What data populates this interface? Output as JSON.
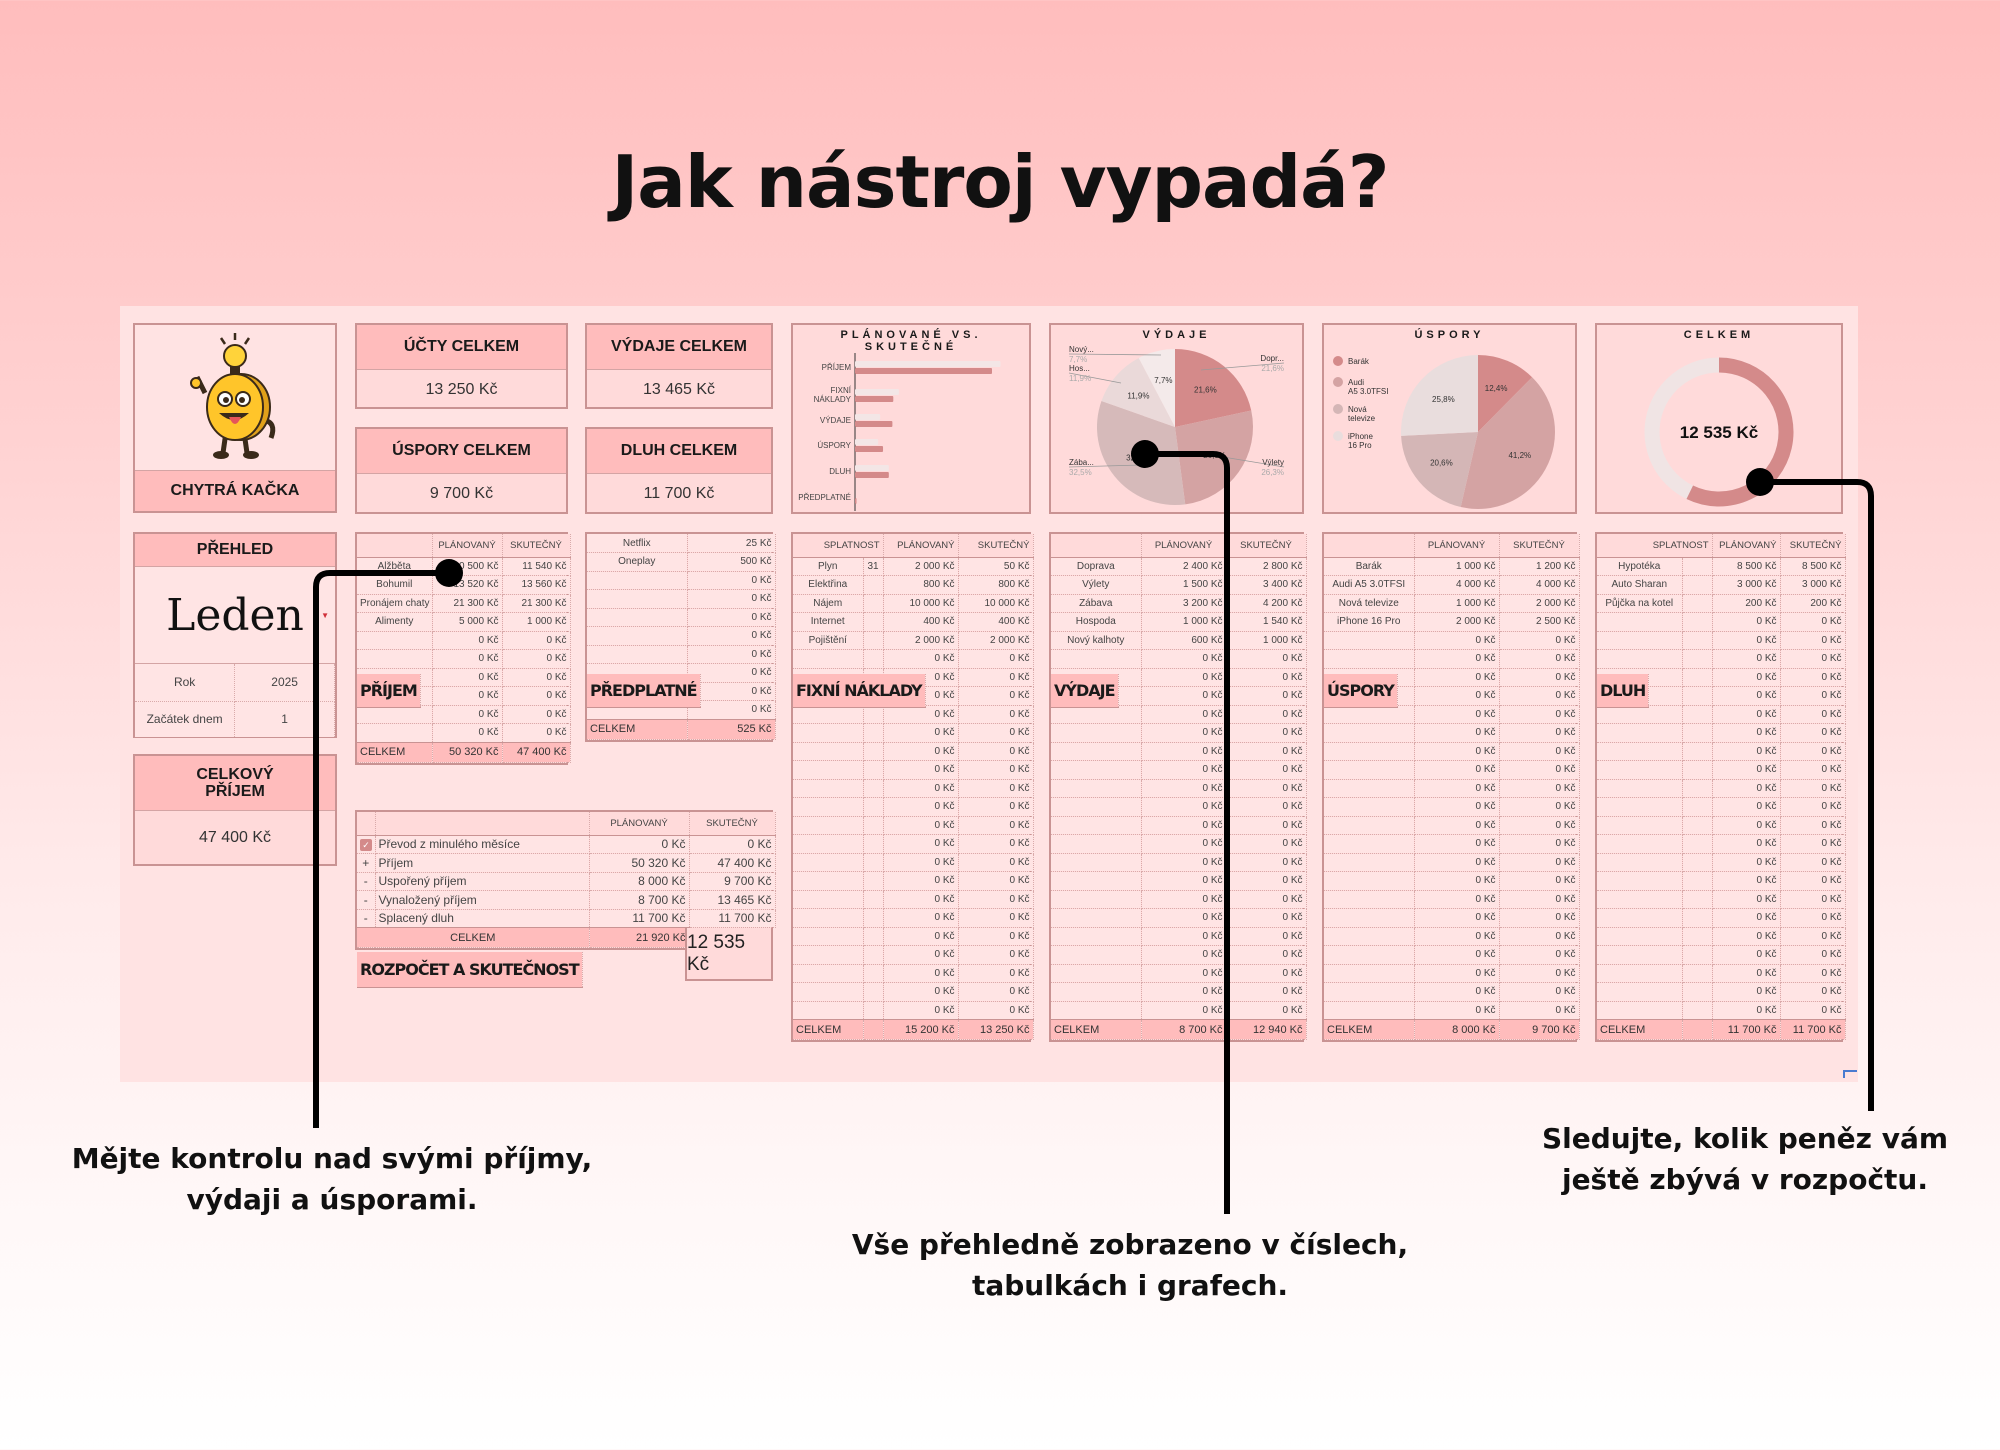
{
  "page_title": "Jak nástroj vypadá?",
  "colors": {
    "header": "#ffbcbc",
    "body": "#ffdada",
    "border": "#c99393",
    "dark_slice": "#d48a8a"
  },
  "logo": {
    "label": "CHYTRÁ KAČKA",
    "icon": "coin-mascot-lightbulb"
  },
  "cards": {
    "ucty": {
      "label": "ÚČTY CELKEM",
      "value": "13 250 Kč"
    },
    "vydaje": {
      "label": "VÝDAJE CELKEM",
      "value": "13 465 Kč"
    },
    "uspory": {
      "label": "ÚSPORY CELKEM",
      "value": "9 700 Kč"
    },
    "dluh": {
      "label": "DLUH CELKEM",
      "value": "11 700 Kč"
    }
  },
  "prehled": {
    "title": "PŘEHLED",
    "month": "Leden",
    "year_label": "Rok",
    "year": "2025",
    "start_label": "Začátek dnem",
    "start": "1"
  },
  "celkovy_prijem": {
    "label": "CELKOVÝ PŘÍJEM",
    "value": "47 400 Kč"
  },
  "chart_data": [
    {
      "type": "bar",
      "orientation": "horizontal",
      "title": "PLÁNOVANÉ VS. SKUTEČNÉ",
      "categories": [
        "PŘÍJEM",
        "FIXNÍ NÁKLADY",
        "VÝDAJE",
        "ÚSPORY",
        "DLUH",
        "PŘEDPLATNÉ"
      ],
      "series": [
        {
          "values": [
            50320,
            15200,
            8700,
            8000,
            11700,
            0
          ],
          "color": "#f3e6e6"
        },
        {
          "values": [
            47400,
            13250,
            12940,
            9700,
            11700,
            525
          ],
          "color": "#d48a8a"
        }
      ]
    },
    {
      "type": "pie",
      "title": "VÝDAJE",
      "labels": [
        "Dopr...",
        "Výlety",
        "Zába...",
        "Hos...",
        "Nový..."
      ],
      "values": [
        21.6,
        26.3,
        32.5,
        11.9,
        7.7
      ],
      "pct_labels": [
        "21,6%",
        "26,3%",
        "32,5%",
        "11,9%",
        "7,7%"
      ],
      "colors": [
        "#d48a8a",
        "#d4a3a3",
        "#d6baba",
        "#ead9d9",
        "#f4eaea"
      ]
    },
    {
      "type": "pie",
      "title": "ÚSPORY",
      "legend": "left",
      "labels": [
        "Barák",
        "Audi A5 3.0TFSI",
        "Nová televize",
        "iPhone 16 Pro"
      ],
      "values": [
        12.4,
        41.2,
        20.6,
        25.8
      ],
      "pct_labels": [
        "12,4%",
        "41,2%",
        "20,6%",
        "25,8%"
      ],
      "colors": [
        "#d48a8a",
        "#d4a3a3",
        "#d4b6b6",
        "#e9dddd"
      ]
    },
    {
      "type": "donut",
      "title": "CELKEM",
      "center_label": "12 535 Kč",
      "value": 12535,
      "total": 21920,
      "colors": [
        "#d48a8a",
        "#f0e4e4"
      ]
    }
  ],
  "tables": {
    "prijem": {
      "title": "PŘÍJEM",
      "headers": [
        "",
        "PLÁNOVANÝ",
        "SKUTEČNÝ"
      ],
      "rows": [
        [
          "Alžběta",
          "10 500 Kč",
          "11 540 Kč"
        ],
        [
          "Bohumil",
          "13 520 Kč",
          "13 560 Kč"
        ],
        [
          "Pronájem chaty",
          "21 300 Kč",
          "21 300 Kč"
        ],
        [
          "Alimenty",
          "5 000 Kč",
          "1 000 Kč"
        ],
        [
          "",
          "0 Kč",
          "0 Kč"
        ],
        [
          "",
          "0 Kč",
          "0 Kč"
        ],
        [
          "",
          "0 Kč",
          "0 Kč"
        ],
        [
          "",
          "0 Kč",
          "0 Kč"
        ],
        [
          "",
          "0 Kč",
          "0 Kč"
        ],
        [
          "",
          "0 Kč",
          "0 Kč"
        ]
      ],
      "total": [
        "CELKEM",
        "50 320 Kč",
        "47 400 Kč"
      ]
    },
    "predplatne": {
      "title": "PŘEDPLATNÉ",
      "headers": [],
      "rows": [
        [
          "Netflix",
          "25 Kč"
        ],
        [
          "Oneplay",
          "500 Kč"
        ],
        [
          "",
          "0 Kč"
        ],
        [
          "",
          "0 Kč"
        ],
        [
          "",
          "0 Kč"
        ],
        [
          "",
          "0 Kč"
        ],
        [
          "",
          "0 Kč"
        ],
        [
          "",
          "0 Kč"
        ],
        [
          "",
          "0 Kč"
        ],
        [
          "",
          "0 Kč"
        ]
      ],
      "total": [
        "CELKEM",
        "525 Kč"
      ]
    },
    "fixni": {
      "title": "FIXNÍ NÁKLADY",
      "headers": [
        "SPLATNOST",
        "PLÁNOVANÝ",
        "SKUTEČNÝ"
      ],
      "rows": [
        [
          "Plyn",
          "31",
          "2 000 Kč",
          "50 Kč"
        ],
        [
          "Elektřina",
          "",
          "800 Kč",
          "800 Kč"
        ],
        [
          "Nájem",
          "",
          "10 000 Kč",
          "10 000 Kč"
        ],
        [
          "Internet",
          "",
          "400 Kč",
          "400 Kč"
        ],
        [
          "Pojištění",
          "",
          "2 000 Kč",
          "2 000 Kč"
        ],
        [
          "",
          "",
          "0 Kč",
          "0 Kč"
        ],
        [
          "",
          "",
          "0 Kč",
          "0 Kč"
        ],
        [
          "",
          "",
          "0 Kč",
          "0 Kč"
        ],
        [
          "",
          "",
          "0 Kč",
          "0 Kč"
        ],
        [
          "",
          "",
          "0 Kč",
          "0 Kč"
        ],
        [
          "",
          "",
          "0 Kč",
          "0 Kč"
        ],
        [
          "",
          "",
          "0 Kč",
          "0 Kč"
        ],
        [
          "",
          "",
          "0 Kč",
          "0 Kč"
        ],
        [
          "",
          "",
          "0 Kč",
          "0 Kč"
        ],
        [
          "",
          "",
          "0 Kč",
          "0 Kč"
        ],
        [
          "",
          "",
          "0 Kč",
          "0 Kč"
        ],
        [
          "",
          "",
          "0 Kč",
          "0 Kč"
        ],
        [
          "",
          "",
          "0 Kč",
          "0 Kč"
        ],
        [
          "",
          "",
          "0 Kč",
          "0 Kč"
        ],
        [
          "",
          "",
          "0 Kč",
          "0 Kč"
        ],
        [
          "",
          "",
          "0 Kč",
          "0 Kč"
        ],
        [
          "",
          "",
          "0 Kč",
          "0 Kč"
        ],
        [
          "",
          "",
          "0 Kč",
          "0 Kč"
        ],
        [
          "",
          "",
          "0 Kč",
          "0 Kč"
        ],
        [
          "",
          "",
          "0 Kč",
          "0 Kč"
        ]
      ],
      "total": [
        "CELKEM",
        "",
        "15 200 Kč",
        "13 250 Kč"
      ]
    },
    "vydaje": {
      "title": "VÝDAJE",
      "headers": [
        "",
        "PLÁNOVANÝ",
        "SKUTEČNÝ"
      ],
      "rows": [
        [
          "Doprava",
          "2 400 Kč",
          "2 800 Kč"
        ],
        [
          "Výlety",
          "1 500 Kč",
          "3 400 Kč"
        ],
        [
          "Zábava",
          "3 200 Kč",
          "4 200 Kč"
        ],
        [
          "Hospoda",
          "1 000 Kč",
          "1 540 Kč"
        ],
        [
          "Nový kalhoty",
          "600 Kč",
          "1 000 Kč"
        ],
        [
          "",
          "0 Kč",
          "0 Kč"
        ],
        [
          "",
          "0 Kč",
          "0 Kč"
        ],
        [
          "",
          "0 Kč",
          "0 Kč"
        ],
        [
          "",
          "0 Kč",
          "0 Kč"
        ],
        [
          "",
          "0 Kč",
          "0 Kč"
        ],
        [
          "",
          "0 Kč",
          "0 Kč"
        ],
        [
          "",
          "0 Kč",
          "0 Kč"
        ],
        [
          "",
          "0 Kč",
          "0 Kč"
        ],
        [
          "",
          "0 Kč",
          "0 Kč"
        ],
        [
          "",
          "0 Kč",
          "0 Kč"
        ],
        [
          "",
          "0 Kč",
          "0 Kč"
        ],
        [
          "",
          "0 Kč",
          "0 Kč"
        ],
        [
          "",
          "0 Kč",
          "0 Kč"
        ],
        [
          "",
          "0 Kč",
          "0 Kč"
        ],
        [
          "",
          "0 Kč",
          "0 Kč"
        ],
        [
          "",
          "0 Kč",
          "0 Kč"
        ],
        [
          "",
          "0 Kč",
          "0 Kč"
        ],
        [
          "",
          "0 Kč",
          "0 Kč"
        ],
        [
          "",
          "0 Kč",
          "0 Kč"
        ],
        [
          "",
          "0 Kč",
          "0 Kč"
        ]
      ],
      "total": [
        "CELKEM",
        "8 700 Kč",
        "12 940 Kč"
      ]
    },
    "uspory": {
      "title": "ÚSPORY",
      "headers": [
        "",
        "PLÁNOVANÝ",
        "SKUTEČNÝ"
      ],
      "rows": [
        [
          "Barák",
          "1 000 Kč",
          "1 200 Kč"
        ],
        [
          "Audi A5 3.0TFSI",
          "4 000 Kč",
          "4 000 Kč"
        ],
        [
          "Nová televize",
          "1 000 Kč",
          "2 000 Kč"
        ],
        [
          "iPhone 16 Pro",
          "2 000 Kč",
          "2 500 Kč"
        ],
        [
          "",
          "0 Kč",
          "0 Kč"
        ],
        [
          "",
          "0 Kč",
          "0 Kč"
        ],
        [
          "",
          "0 Kč",
          "0 Kč"
        ],
        [
          "",
          "0 Kč",
          "0 Kč"
        ],
        [
          "",
          "0 Kč",
          "0 Kč"
        ],
        [
          "",
          "0 Kč",
          "0 Kč"
        ],
        [
          "",
          "0 Kč",
          "0 Kč"
        ],
        [
          "",
          "0 Kč",
          "0 Kč"
        ],
        [
          "",
          "0 Kč",
          "0 Kč"
        ],
        [
          "",
          "0 Kč",
          "0 Kč"
        ],
        [
          "",
          "0 Kč",
          "0 Kč"
        ],
        [
          "",
          "0 Kč",
          "0 Kč"
        ],
        [
          "",
          "0 Kč",
          "0 Kč"
        ],
        [
          "",
          "0 Kč",
          "0 Kč"
        ],
        [
          "",
          "0 Kč",
          "0 Kč"
        ],
        [
          "",
          "0 Kč",
          "0 Kč"
        ],
        [
          "",
          "0 Kč",
          "0 Kč"
        ],
        [
          "",
          "0 Kč",
          "0 Kč"
        ],
        [
          "",
          "0 Kč",
          "0 Kč"
        ],
        [
          "",
          "0 Kč",
          "0 Kč"
        ],
        [
          "",
          "0 Kč",
          "0 Kč"
        ]
      ],
      "total": [
        "CELKEM",
        "8 000 Kč",
        "9 700 Kč"
      ]
    },
    "dluh": {
      "title": "DLUH",
      "headers": [
        "SPLATNOST",
        "PLÁNOVANÝ",
        "SKUTEČNÝ"
      ],
      "rows": [
        [
          "Hypotéka",
          "",
          "8 500 Kč",
          "8 500 Kč"
        ],
        [
          "Auto Sharan",
          "",
          "3 000 Kč",
          "3 000 Kč"
        ],
        [
          "Půjčka na kotel",
          "",
          "200 Kč",
          "200 Kč"
        ],
        [
          "",
          "",
          "0 Kč",
          "0 Kč"
        ],
        [
          "",
          "",
          "0 Kč",
          "0 Kč"
        ],
        [
          "",
          "",
          "0 Kč",
          "0 Kč"
        ],
        [
          "",
          "",
          "0 Kč",
          "0 Kč"
        ],
        [
          "",
          "",
          "0 Kč",
          "0 Kč"
        ],
        [
          "",
          "",
          "0 Kč",
          "0 Kč"
        ],
        [
          "",
          "",
          "0 Kč",
          "0 Kč"
        ],
        [
          "",
          "",
          "0 Kč",
          "0 Kč"
        ],
        [
          "",
          "",
          "0 Kč",
          "0 Kč"
        ],
        [
          "",
          "",
          "0 Kč",
          "0 Kč"
        ],
        [
          "",
          "",
          "0 Kč",
          "0 Kč"
        ],
        [
          "",
          "",
          "0 Kč",
          "0 Kč"
        ],
        [
          "",
          "",
          "0 Kč",
          "0 Kč"
        ],
        [
          "",
          "",
          "0 Kč",
          "0 Kč"
        ],
        [
          "",
          "",
          "0 Kč",
          "0 Kč"
        ],
        [
          "",
          "",
          "0 Kč",
          "0 Kč"
        ],
        [
          "",
          "",
          "0 Kč",
          "0 Kč"
        ],
        [
          "",
          "",
          "0 Kč",
          "0 Kč"
        ],
        [
          "",
          "",
          "0 Kč",
          "0 Kč"
        ],
        [
          "",
          "",
          "0 Kč",
          "0 Kč"
        ],
        [
          "",
          "",
          "0 Kč",
          "0 Kč"
        ],
        [
          "",
          "",
          "0 Kč",
          "0 Kč"
        ]
      ],
      "total": [
        "CELKEM",
        "",
        "11 700 Kč",
        "11 700 Kč"
      ]
    },
    "rozpocet": {
      "title": "ROZPOČET A SKUTEČNOST",
      "headers": [
        "",
        "",
        "PLÁNOVANÝ",
        "SKUTEČNÝ"
      ],
      "rows": [
        [
          "",
          "Převod z minulého měsíce",
          "0 Kč",
          "0 Kč"
        ],
        [
          "+",
          "Příjem",
          "50 320 Kč",
          "47 400 Kč"
        ],
        [
          "-",
          "Uspořený příjem",
          "8 000 Kč",
          "9 700 Kč"
        ],
        [
          "-",
          "Vynaložený příjem",
          "8 700 Kč",
          "13 465 Kč"
        ],
        [
          "-",
          "Splacený dluh",
          "11 700 Kč",
          "11 700 Kč"
        ]
      ],
      "total": [
        "CELKEM",
        "21 920 Kč"
      ],
      "result": "12 535 Kč",
      "transfer_checked": true
    }
  },
  "notes": {
    "left": [
      "Mějte kontrolu nad svými příjmy,",
      "výdaji a úsporami."
    ],
    "center": [
      "Vše přehledně zobrazeno v číslech,",
      "tabulkách i grafech."
    ],
    "right": [
      "Sledujte, kolik peněz vám",
      "ještě zbývá v rozpočtu."
    ]
  }
}
